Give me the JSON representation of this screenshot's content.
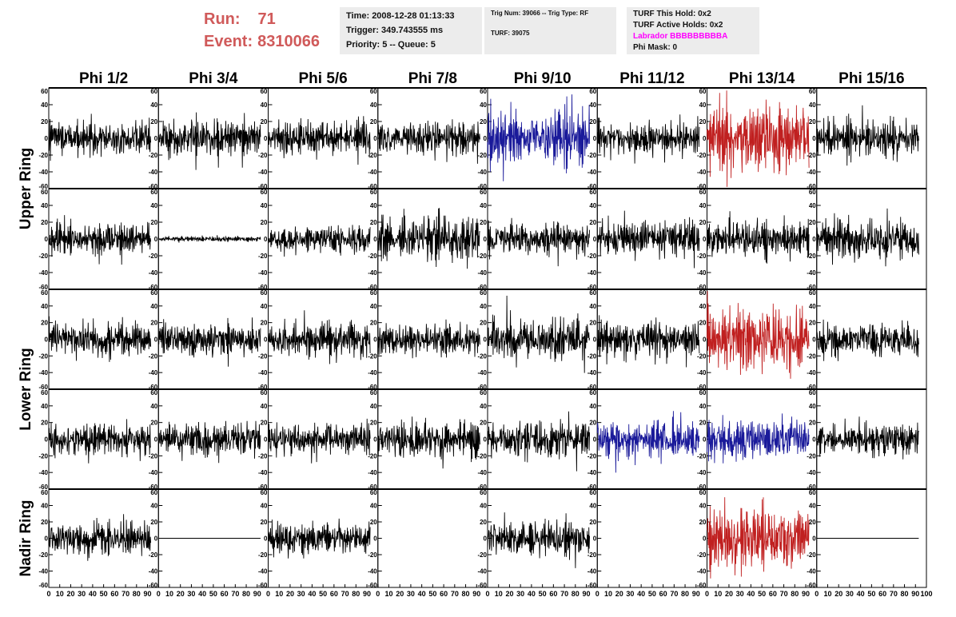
{
  "header": {
    "run_label": "Run:",
    "run_value": "71",
    "event_label": "Event:",
    "event_value": "8310066",
    "time_line": "Time: 2008-12-28 01:13:33",
    "trigger_line": "Trigger: 349.743555 ms",
    "priority_line": "Priority: 5 -- Queue: 5",
    "trig_num_line": "Trig Num: 39066 -- Trig Type: RF",
    "turf_line": "TURF: 39075",
    "turf_this_hold": "TURF This Hold: 0x2",
    "turf_active_holds": "TURF Active Holds: 0x2",
    "labrador": "Labrador BBBBBBBBBA",
    "phi_mask": "Phi Mask: 0"
  },
  "colors": {
    "title_red": "#d05a5a",
    "labrador_magenta": "#ff00ff",
    "trace_black": "#000000",
    "trace_blue": "#1a1a9a",
    "trace_red": "#c02020"
  },
  "chart_data": {
    "type": "line",
    "columns": [
      "Phi 1/2",
      "Phi 3/4",
      "Phi 5/6",
      "Phi 7/8",
      "Phi 9/10",
      "Phi 11/12",
      "Phi 13/14",
      "Phi 15/16"
    ],
    "ring_labels": [
      "Upper Ring",
      "Lower Ring",
      "Nadir Ring"
    ],
    "ring_row_spans": [
      [
        0,
        1
      ],
      [
        2,
        3
      ],
      [
        4,
        4
      ]
    ],
    "xlim": [
      0,
      100
    ],
    "ylim": [
      -60,
      60
    ],
    "x_ticks": [
      0,
      10,
      20,
      30,
      40,
      50,
      60,
      70,
      80,
      90,
      100
    ],
    "y_ticks": [
      -60,
      -40,
      -20,
      0,
      20,
      40,
      60
    ],
    "samples_per_trace": 260,
    "channels": [
      [
        {
          "a": 14,
          "c": "black"
        },
        {
          "a": 13,
          "c": "black"
        },
        {
          "a": 13,
          "c": "black"
        },
        {
          "a": 13,
          "c": "black"
        },
        {
          "a": 22,
          "c": "blue"
        },
        {
          "a": 13,
          "c": "black"
        },
        {
          "a": 26,
          "c": "red"
        },
        {
          "a": 15,
          "c": "black"
        }
      ],
      [
        {
          "a": 12,
          "c": "black"
        },
        {
          "a": 2,
          "c": "black"
        },
        {
          "a": 10,
          "c": "black"
        },
        {
          "a": 18,
          "c": "black"
        },
        {
          "a": 12,
          "c": "black"
        },
        {
          "a": 14,
          "c": "black"
        },
        {
          "a": 13,
          "c": "black"
        },
        {
          "a": 15,
          "c": "black"
        }
      ],
      [
        {
          "a": 13,
          "c": "black"
        },
        {
          "a": 12,
          "c": "black"
        },
        {
          "a": 13,
          "c": "black"
        },
        {
          "a": 12,
          "c": "black"
        },
        {
          "a": 17,
          "c": "black"
        },
        {
          "a": 14,
          "c": "black"
        },
        {
          "a": 24,
          "c": "red"
        },
        {
          "a": 12,
          "c": "black"
        }
      ],
      [
        {
          "a": 12,
          "c": "black"
        },
        {
          "a": 12,
          "c": "black"
        },
        {
          "a": 12,
          "c": "black"
        },
        {
          "a": 15,
          "c": "black"
        },
        {
          "a": 14,
          "c": "black"
        },
        {
          "a": 16,
          "c": "blue"
        },
        {
          "a": 16,
          "c": "blue"
        },
        {
          "a": 12,
          "c": "black"
        }
      ],
      [
        {
          "a": 14,
          "c": "black"
        },
        {
          "a": 0,
          "c": "black"
        },
        {
          "a": 12,
          "c": "black"
        },
        null,
        {
          "a": 15,
          "c": "black"
        },
        null,
        {
          "a": 24,
          "c": "red"
        },
        {
          "a": 0,
          "c": "black"
        }
      ]
    ]
  }
}
